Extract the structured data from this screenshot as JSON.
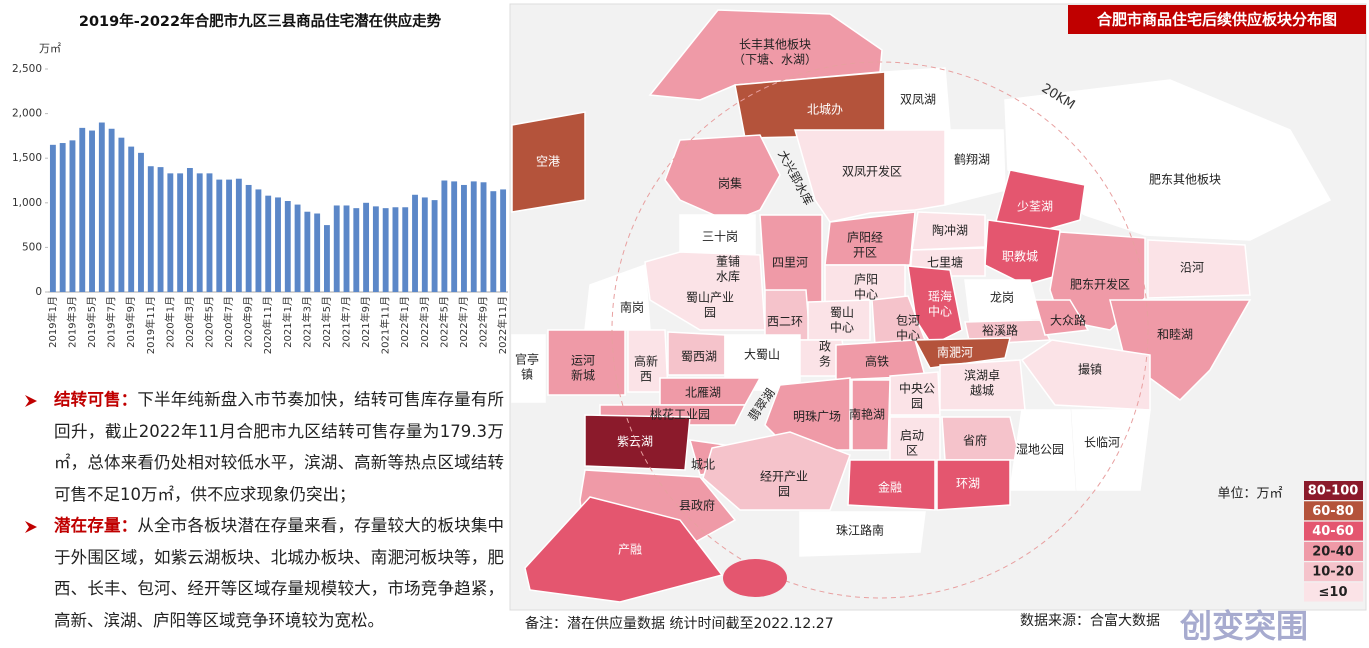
{
  "chart_data": {
    "type": "bar",
    "title": "2019年-2022年合肥市九区三县商品住宅潜在供应走势",
    "y_label": "万㎡",
    "categories": [
      "2019年1月",
      null,
      "2019年3月",
      null,
      "2019年5月",
      null,
      "2019年7月",
      null,
      "2019年9月",
      null,
      "2019年11月",
      null,
      "2020年1月",
      null,
      "2020年3月",
      null,
      "2020年5月",
      null,
      "2020年7月",
      null,
      "2020年9月",
      null,
      "2020年11月",
      null,
      "2021年1月",
      null,
      "2021年3月",
      null,
      "2021年5月",
      null,
      "2021年7月",
      null,
      "2021年9月",
      null,
      "2021年11月",
      null,
      "2022年1月",
      null,
      "2022年3月",
      null,
      "2022年5月",
      null,
      "2022年7月",
      null,
      "2022年9月",
      null,
      "2022年11月"
    ],
    "values": [
      1650,
      1670,
      1700,
      1840,
      1810,
      1900,
      1830,
      1730,
      1630,
      1560,
      1410,
      1400,
      1330,
      1330,
      1390,
      1330,
      1330,
      1260,
      1260,
      1270,
      1200,
      1150,
      1080,
      1060,
      1020,
      980,
      900,
      880,
      750,
      970,
      970,
      940,
      1000,
      960,
      940,
      950,
      950,
      1090,
      1060,
      1030,
      1250,
      1240,
      1200,
      1240,
      1230,
      1130,
      1150
    ],
    "color": "#5b87c8",
    "ylim": [
      0,
      2500
    ],
    "yticks": [
      0,
      500,
      {
        "value": 1000,
        "label": "1,000"
      },
      {
        "value": 1500,
        "label": "1,500"
      },
      {
        "value": 2000,
        "label": "2,000"
      },
      {
        "value": 2500,
        "label": "2,500"
      }
    ]
  },
  "text": {
    "bullets": [
      {
        "heading": "结转可售：",
        "body": "下半年纯新盘入市节奏加快，结转可售库存量有所回升，截止2022年11月合肥市九区结转可售存量为179.3万㎡，总体来看仍处相对较低水平，滨湖、高新等热点区域结转可售不足10万㎡，供不应求现象仍突出；"
      },
      {
        "heading": "潜在存量：",
        "body": "从全市各板块潜在存量来看，存量较大的板块集中于外围区域，如紫云湖板块、北城办板块、南淝河板块等，肥西、长丰、包河、经开等区域存量规模较大，市场竞争趋紧，高新、滨湖、庐阳等区域竞争环境较为宽松。"
      }
    ]
  },
  "map": {
    "title": "合肥市商品住宅后续供应板块分布图",
    "distance": "20KM",
    "unit": "单位：万㎡",
    "legend": [
      {
        "label": "80-100",
        "color": "#8b1a2b"
      },
      {
        "label": "60-80",
        "color": "#b4533b"
      },
      {
        "label": "40-60",
        "color": "#e4566f"
      },
      {
        "label": "20-40",
        "color": "#ef9aa7"
      },
      {
        "label": "10-20",
        "color": "#f5c3cb"
      },
      {
        "label": "≤10",
        "color": "#fbe3e7"
      }
    ],
    "regions": [
      {
        "lines": [
          "长丰其他板块",
          "（下塘、水湖）"
        ],
        "color": "#ef9aa7"
      },
      {
        "lines": [
          "北城办"
        ],
        "color": "#b4533b"
      },
      {
        "lines": [
          "双凤湖"
        ],
        "color": "#ffffff"
      },
      {
        "lines": [
          "空港"
        ],
        "color": "#b4533b"
      },
      {
        "lines": [
          "鹤翔湖"
        ],
        "color": "#ffffff"
      },
      {
        "lines": [
          "肥东其他板块"
        ],
        "color": "#ffffff"
      },
      {
        "lines": [
          "双凤开发区"
        ],
        "color": "#fbe3e7"
      },
      {
        "lines": [
          "岗集"
        ],
        "color": "#ef9aa7"
      },
      {
        "lines": [
          "大兴郢水库"
        ],
        "color": "#ffffff"
      },
      {
        "lines": [
          "少荃湖"
        ],
        "color": "#e4566f"
      },
      {
        "lines": [
          "三十岗"
        ],
        "color": "#ffffff"
      },
      {
        "lines": [
          "四里河"
        ],
        "color": "#ef9aa7"
      },
      {
        "lines": [
          "庐阳经",
          "开区"
        ],
        "color": "#ef9aa7"
      },
      {
        "lines": [
          "陶冲湖"
        ],
        "color": "#fbe3e7"
      },
      {
        "lines": [
          "职教城"
        ],
        "color": "#e4566f"
      },
      {
        "lines": [
          "肥东开发区"
        ],
        "color": "#ef9aa7"
      },
      {
        "lines": [
          "沿河"
        ],
        "color": "#fbe3e7"
      },
      {
        "lines": [
          "蜀山产业",
          "园"
        ],
        "color": "#fbe3e7"
      },
      {
        "lines": [
          "董铺",
          "水库"
        ],
        "color": "#ffffff"
      },
      {
        "lines": [
          "七里塘"
        ],
        "color": "#fbe3e7"
      },
      {
        "lines": [
          "庐阳",
          "中心"
        ],
        "color": "#fbe3e7"
      },
      {
        "lines": [
          "南岗"
        ],
        "color": "#ffffff"
      },
      {
        "lines": [
          "西二环"
        ],
        "color": "#f5c3cb"
      },
      {
        "lines": [
          "蜀山",
          "中心"
        ],
        "color": "#fbe3e7"
      },
      {
        "lines": [
          "包河",
          "中心"
        ],
        "color": "#f5c3cb"
      },
      {
        "lines": [
          "瑶海",
          "中心"
        ],
        "color": "#e4566f"
      },
      {
        "lines": [
          "龙岗"
        ],
        "color": "#ffffff"
      },
      {
        "lines": [
          "裕溪路"
        ],
        "color": "#f5c3cb"
      },
      {
        "lines": [
          "大众路"
        ],
        "color": "#ef9aa7"
      },
      {
        "lines": [
          "和睦湖"
        ],
        "color": "#ef9aa7"
      },
      {
        "lines": [
          "官亭",
          "镇"
        ],
        "color": "#ffffff"
      },
      {
        "lines": [
          "运河",
          "新城"
        ],
        "color": "#ef9aa7"
      },
      {
        "lines": [
          "高新",
          "西"
        ],
        "color": "#fbe3e7"
      },
      {
        "lines": [
          "蜀西湖"
        ],
        "color": "#f5c3cb"
      },
      {
        "lines": [
          "大蜀山"
        ],
        "color": "#ffffff"
      },
      {
        "lines": [
          "政",
          "务"
        ],
        "color": "#fbe3e7"
      },
      {
        "lines": [
          "高铁"
        ],
        "color": "#ef9aa7"
      },
      {
        "lines": [
          "南淝河"
        ],
        "color": "#b4533b"
      },
      {
        "lines": [
          "滨湖卓",
          "越城"
        ],
        "color": "#fbe3e7"
      },
      {
        "lines": [
          "撮镇"
        ],
        "color": "#fbe3e7"
      },
      {
        "lines": [
          "北雁湖"
        ],
        "color": "#ef9aa7"
      },
      {
        "lines": [
          "中央公",
          "园"
        ],
        "color": "#fbe3e7"
      },
      {
        "lines": [
          "明珠广场"
        ],
        "color": "#ef9aa7"
      },
      {
        "lines": [
          "南艳湖"
        ],
        "color": "#ef9aa7"
      },
      {
        "lines": [
          "桃花工业园"
        ],
        "color": "#ef9aa7"
      },
      {
        "lines": [
          "翡翠湖"
        ],
        "color": "#ffffff"
      },
      {
        "lines": [
          "紫云湖"
        ],
        "color": "#8b1a2b"
      },
      {
        "lines": [
          "启动",
          "区"
        ],
        "color": "#fbe3e7"
      },
      {
        "lines": [
          "省府"
        ],
        "color": "#f5c3cb"
      },
      {
        "lines": [
          "湿地公园"
        ],
        "color": "#ffffff"
      },
      {
        "lines": [
          "长临河"
        ],
        "color": "#ffffff"
      },
      {
        "lines": [
          "城北"
        ],
        "color": "#ef9aa7"
      },
      {
        "lines": [
          "经开产业",
          "园"
        ],
        "color": "#f5c3cb"
      },
      {
        "lines": [
          "金融"
        ],
        "color": "#e4566f"
      },
      {
        "lines": [
          "环湖"
        ],
        "color": "#e4566f"
      },
      {
        "lines": [
          "县政府"
        ],
        "color": "#ef9aa7"
      },
      {
        "lines": [
          "珠江路南"
        ],
        "color": "#ffffff"
      },
      {
        "lines": [
          "产融"
        ],
        "color": "#e4566f"
      }
    ]
  },
  "footer": {
    "note": "备注：潜在供应量数据 统计时间截至2022.12.27",
    "source": "数据来源：合富大数据",
    "watermark": "创变突围"
  }
}
